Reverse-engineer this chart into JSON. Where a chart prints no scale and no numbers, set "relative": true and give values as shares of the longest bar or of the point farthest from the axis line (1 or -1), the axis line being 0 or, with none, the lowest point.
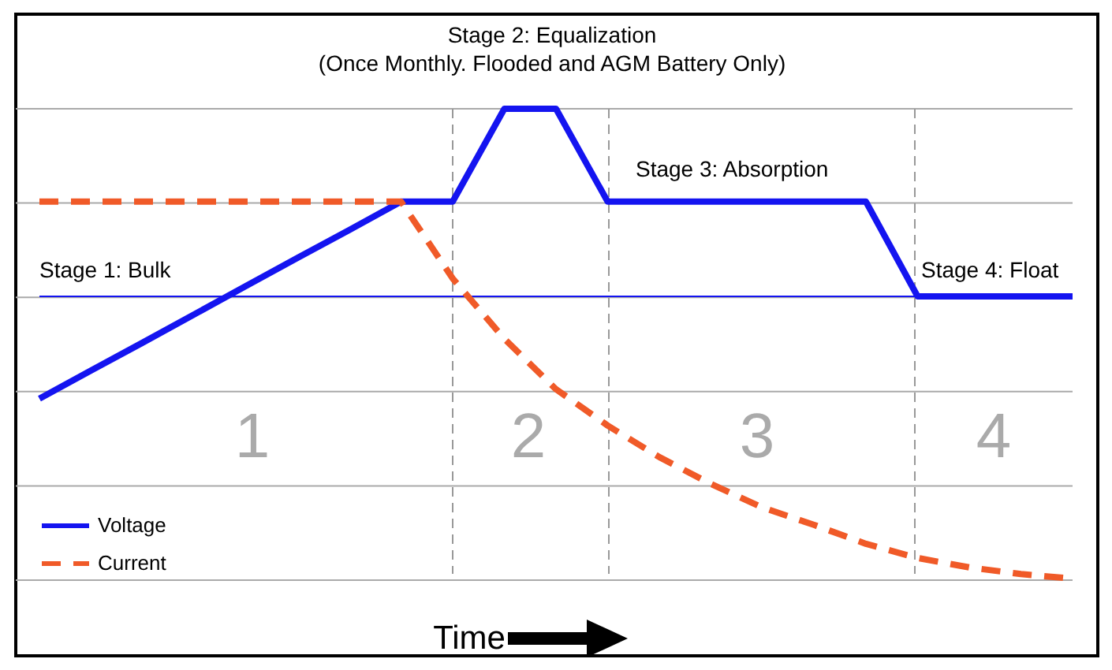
{
  "chart_data": {
    "type": "line",
    "relative": true,
    "xlabel": "Time",
    "legend": "bottom left",
    "marker": "none",
    "grid": true,
    "categories": [
      null,
      null,
      null,
      null,
      null,
      null,
      null,
      null,
      null,
      null,
      null,
      null,
      null,
      null,
      null,
      null,
      null,
      null,
      null,
      null,
      null
    ],
    "series": [
      {
        "name": "Voltage",
        "color": "#1414f0",
        "line_style": "solid",
        "values": [
          0.385,
          0.445,
          0.504,
          0.564,
          0.624,
          0.684,
          0.743,
          0.803,
          0.803,
          1,
          1,
          0.803,
          0.803,
          0.803,
          0.803,
          0.803,
          0.803,
          0.602,
          0.602,
          0.602,
          0.602
        ]
      },
      {
        "name": "Current",
        "color": "#f05a28",
        "line_style": "dashed",
        "values": [
          0.803,
          0.803,
          0.803,
          0.803,
          0.803,
          0.803,
          0.803,
          0.803,
          0.64,
          0.512,
          0.405,
          0.328,
          0.261,
          0.204,
          0.154,
          0.117,
          0.077,
          0.047,
          0.027,
          0.013,
          0.003
        ]
      }
    ],
    "ref_lines": [
      {
        "axis": "y",
        "value": 0.602,
        "color": "#1414f0",
        "line_style": "solid"
      }
    ],
    "annotations": [
      "Stage 1: Bulk",
      "Stage 2: Equalization",
      "(Once Monthly. Flooded and AGM Battery Only)",
      "Stage 3: Absorption",
      "Stage 4: Float",
      "1",
      "2",
      "3",
      "4"
    ]
  }
}
